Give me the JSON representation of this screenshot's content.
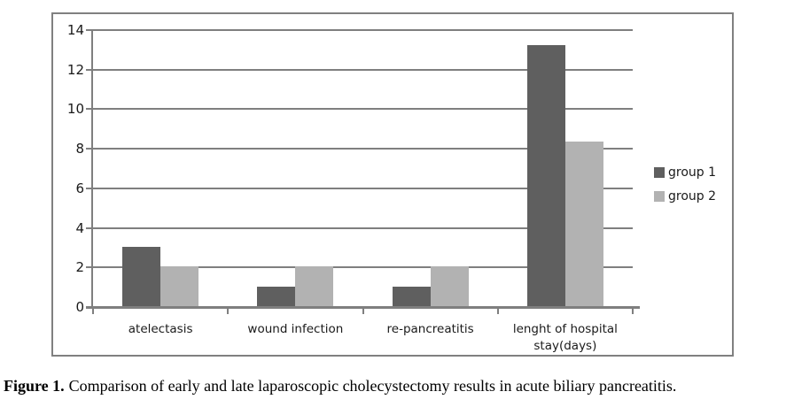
{
  "figure": {
    "caption_prefix": "Figure 1.",
    "caption_text": "Comparison of early and late laparoscopic cholecystectomy results in acute biliary pancreatitis."
  },
  "chart_data": {
    "type": "bar",
    "title": "",
    "categories": [
      "atelectasis",
      "wound infection",
      "re-pancreatitis",
      "lenght of hospital\nstay(days)"
    ],
    "series": [
      {
        "name": "group 1",
        "color": "#5f5f5f",
        "values": [
          3,
          1,
          1,
          13.2
        ]
      },
      {
        "name": "group 2",
        "color": "#b2b2b2",
        "values": [
          2,
          2,
          2,
          8.3
        ]
      }
    ],
    "xlabel": "",
    "ylabel": "",
    "ylim": [
      0,
      14
    ],
    "yticks": [
      0,
      2,
      4,
      6,
      8,
      10,
      12,
      14
    ],
    "grid": true,
    "legend_position": "right",
    "gridline_color": "#7f7f7f",
    "frame_border_color": "#808080",
    "text_color": "#1a1a1a"
  }
}
